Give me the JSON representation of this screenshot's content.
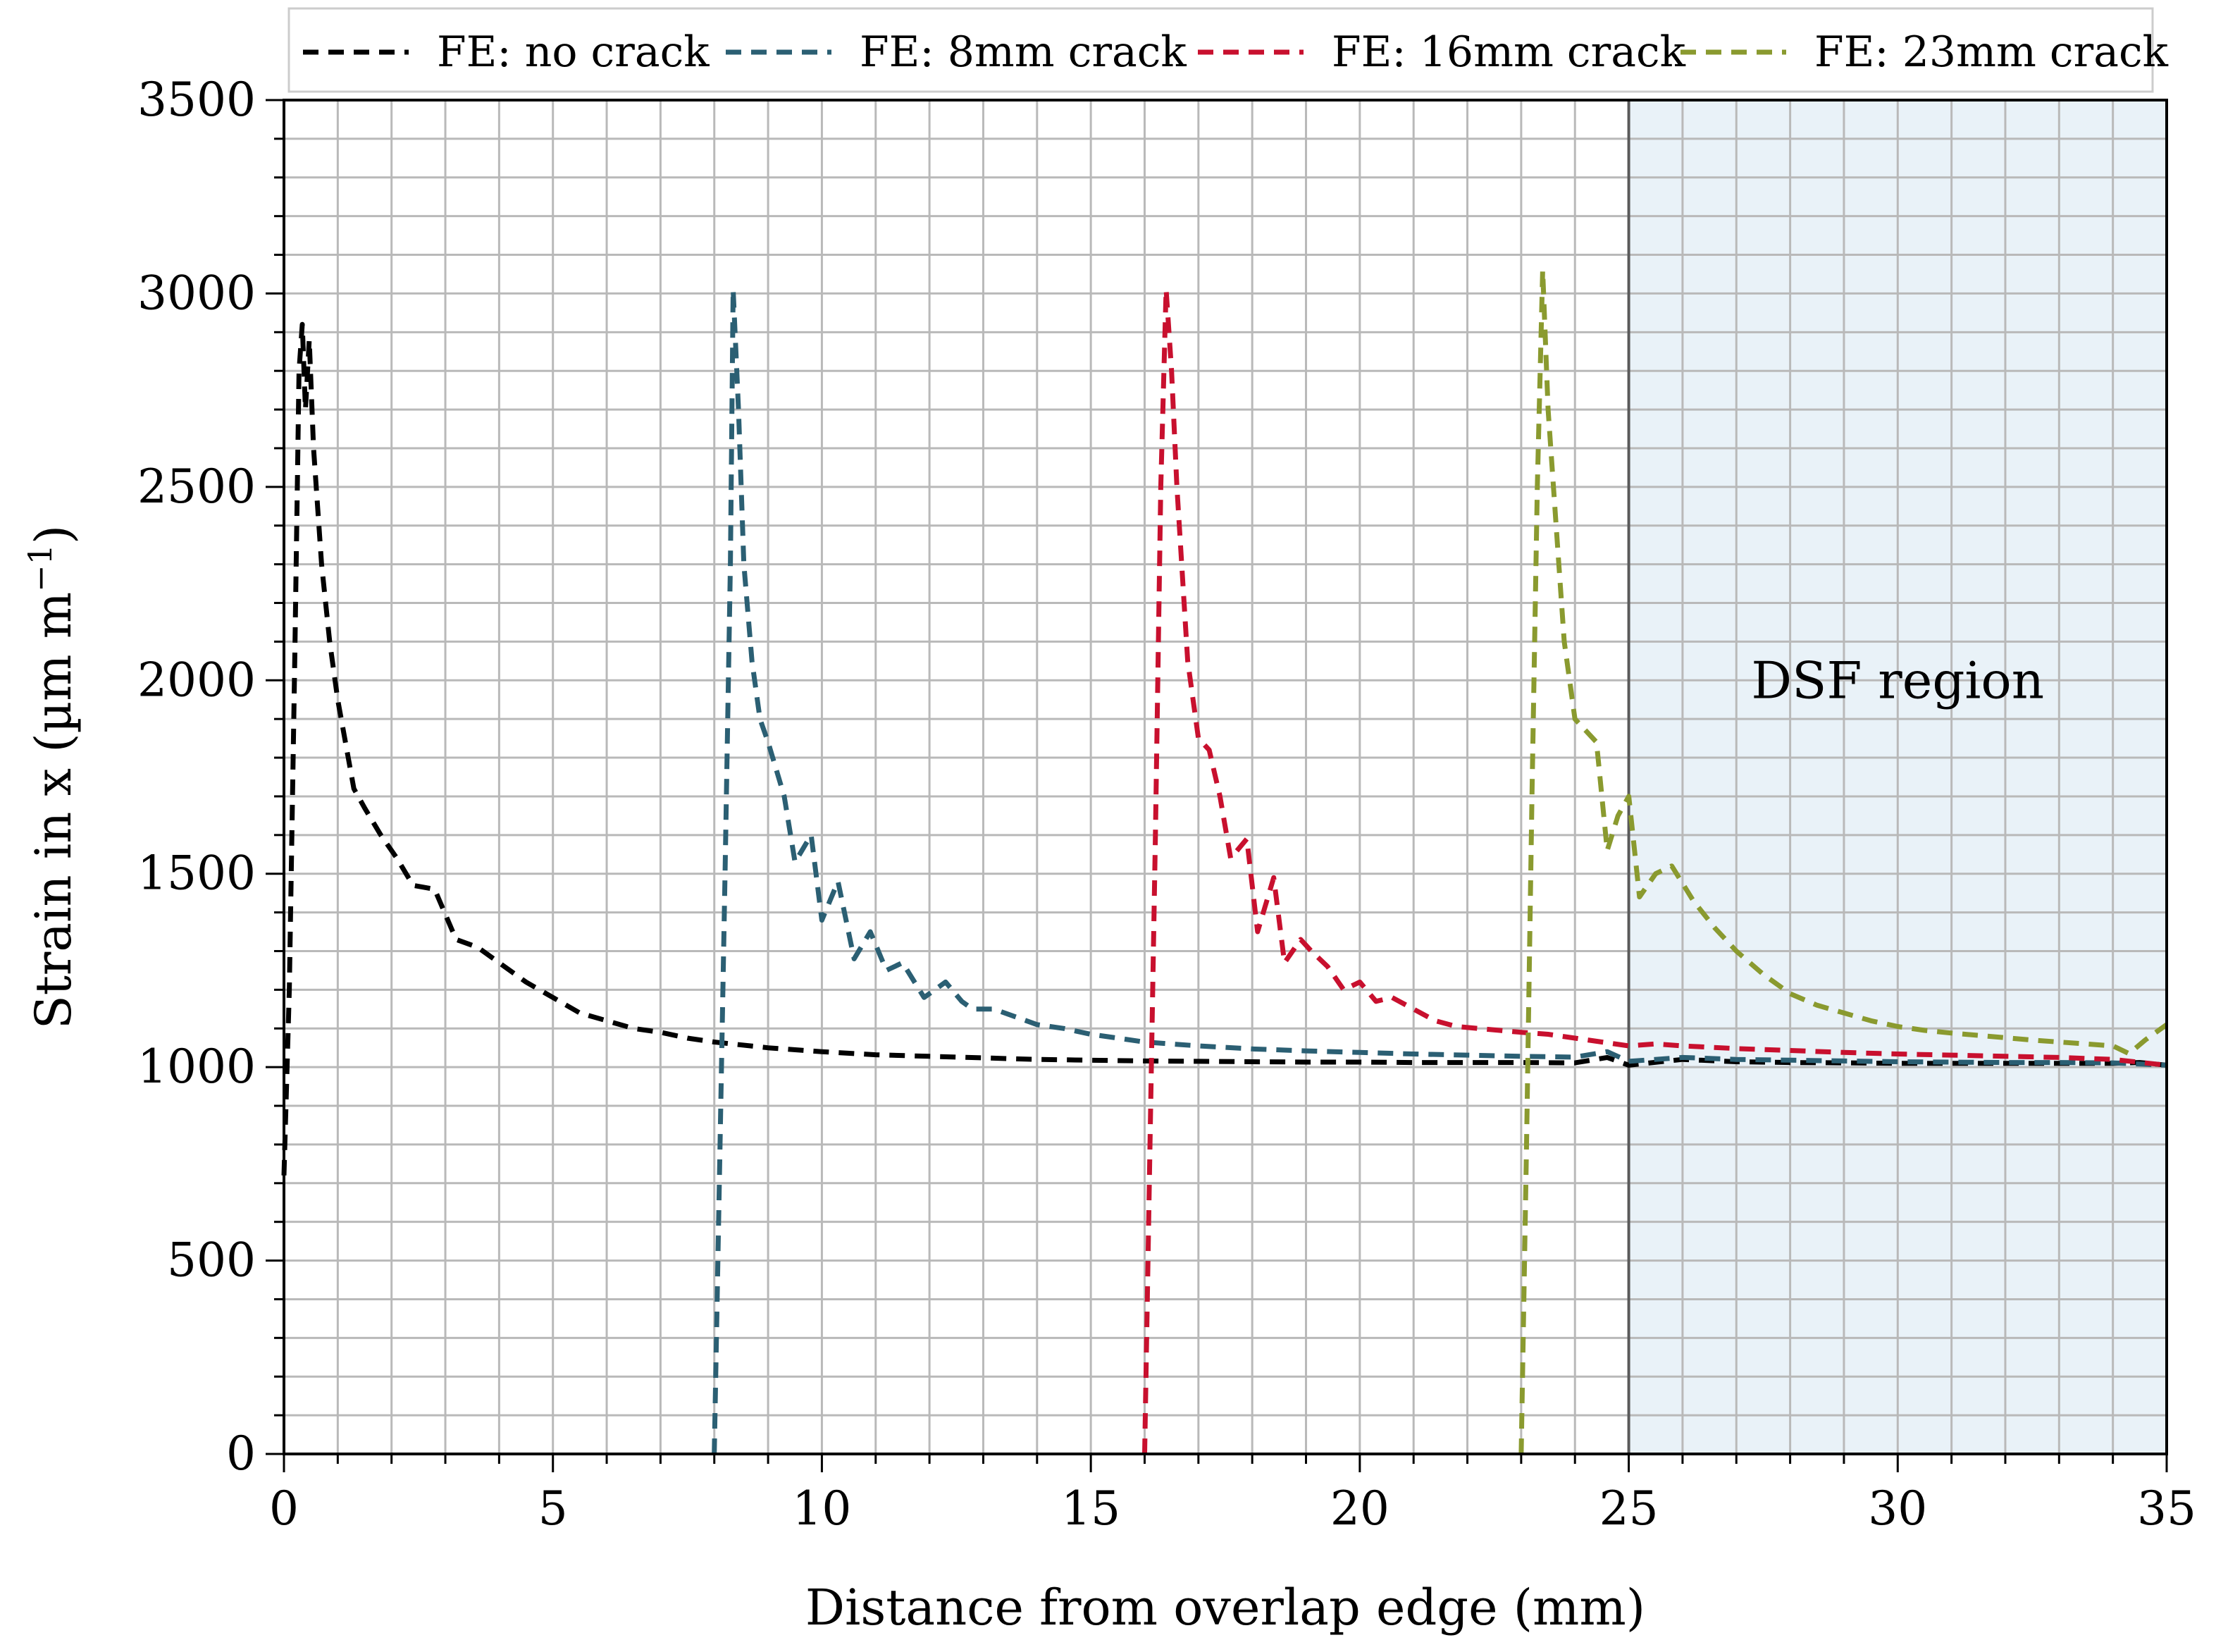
{
  "chart_data": {
    "type": "line",
    "title": "",
    "xlabel": "Distance from overlap edge (mm)",
    "ylabel": "Strain in x (µm m",
    "ylabel_sup": "−1",
    "ylabel_close": ")",
    "xlim": [
      0,
      35
    ],
    "ylim": [
      0,
      3500
    ],
    "x_ticks": [
      "0",
      "5",
      "10",
      "15",
      "20",
      "25",
      "30",
      "35"
    ],
    "y_ticks": [
      "0",
      "500",
      "1000",
      "1500",
      "2000",
      "2500",
      "3000",
      "3500"
    ],
    "grid": true,
    "legend_position": "top",
    "line_style": "dashed",
    "shaded_region": {
      "x_range": [
        25,
        35
      ],
      "label": "DSF region",
      "color": "#e9f2f8"
    },
    "series": [
      {
        "name": "FE: no crack",
        "color": "#000000",
        "x": [
          0.0,
          0.1,
          0.2,
          0.28,
          0.34,
          0.4,
          0.47,
          0.55,
          0.7,
          0.85,
          1.0,
          1.3,
          1.5,
          1.8,
          2.1,
          2.4,
          2.8,
          3.2,
          3.6,
          4.0,
          4.5,
          5.0,
          5.5,
          6.0,
          6.5,
          7.0,
          7.5,
          8.0,
          9.0,
          10.0,
          11.0,
          12.0,
          13.0,
          14.0,
          15.0,
          16.0,
          17.0,
          18.0,
          19.0,
          20.0,
          21.0,
          22.0,
          23.0,
          24.0,
          24.6,
          25.0,
          26.0,
          27.0,
          28.0,
          29.0,
          30.0,
          31.0,
          32.0,
          33.0,
          34.0,
          34.5,
          35.0
        ],
        "y": [
          720,
          1200,
          2050,
          2800,
          2920,
          2700,
          2880,
          2600,
          2300,
          2100,
          1950,
          1720,
          1670,
          1600,
          1540,
          1470,
          1460,
          1330,
          1310,
          1270,
          1220,
          1180,
          1140,
          1120,
          1100,
          1090,
          1075,
          1065,
          1050,
          1040,
          1032,
          1028,
          1024,
          1020,
          1018,
          1016,
          1015,
          1014,
          1013,
          1013,
          1012,
          1012,
          1012,
          1011,
          1025,
          1005,
          1020,
          1014,
          1012,
          1011,
          1010,
          1010,
          1010,
          1010,
          1010,
          1012,
          1005
        ]
      },
      {
        "name": "FE: 8mm crack",
        "color": "#2b5f73",
        "x": [
          8.0,
          8.1,
          8.2,
          8.3,
          8.35,
          8.45,
          8.55,
          8.7,
          8.85,
          9.0,
          9.3,
          9.5,
          9.8,
          10.0,
          10.3,
          10.6,
          10.9,
          11.2,
          11.5,
          11.9,
          12.3,
          12.6,
          12.8,
          13.2,
          13.6,
          14.0,
          14.5,
          15.0,
          15.5,
          16.0,
          17.0,
          18.0,
          19.0,
          20.0,
          21.0,
          22.0,
          23.0,
          24.0,
          24.6,
          25.0,
          26.0,
          27.0,
          28.0,
          29.0,
          30.0,
          31.0,
          32.0,
          33.0,
          34.0,
          35.0
        ],
        "y": [
          0,
          750,
          1500,
          2300,
          3010,
          2700,
          2300,
          2050,
          1900,
          1840,
          1700,
          1530,
          1600,
          1380,
          1480,
          1280,
          1350,
          1250,
          1270,
          1180,
          1220,
          1170,
          1150,
          1150,
          1130,
          1110,
          1100,
          1085,
          1075,
          1065,
          1055,
          1047,
          1042,
          1038,
          1034,
          1031,
          1028,
          1026,
          1040,
          1015,
          1025,
          1020,
          1018,
          1016,
          1014,
          1013,
          1012,
          1012,
          1011,
          1005
        ]
      },
      {
        "name": "FE: 16mm crack",
        "color": "#c8102e",
        "x": [
          16.0,
          16.1,
          16.2,
          16.3,
          16.4,
          16.5,
          16.6,
          16.8,
          17.0,
          17.2,
          17.4,
          17.6,
          17.9,
          18.1,
          18.4,
          18.6,
          18.9,
          19.1,
          19.4,
          19.7,
          20.0,
          20.3,
          20.6,
          21.0,
          21.4,
          21.8,
          22.2,
          22.6,
          23.0,
          23.5,
          24.0,
          24.5,
          25.0,
          25.5,
          26.0,
          27.0,
          28.0,
          29.0,
          30.0,
          31.0,
          32.0,
          33.0,
          34.0,
          35.0
        ],
        "y": [
          0,
          800,
          1600,
          2500,
          3010,
          2800,
          2500,
          2050,
          1850,
          1820,
          1700,
          1540,
          1590,
          1350,
          1490,
          1270,
          1330,
          1300,
          1260,
          1200,
          1220,
          1170,
          1180,
          1150,
          1120,
          1105,
          1100,
          1095,
          1090,
          1085,
          1075,
          1065,
          1055,
          1060,
          1055,
          1048,
          1043,
          1038,
          1034,
          1031,
          1028,
          1025,
          1020,
          1005
        ]
      },
      {
        "name": "FE: 23mm crack",
        "color": "#8a9a2f",
        "x": [
          23.0,
          23.1,
          23.2,
          23.3,
          23.4,
          23.5,
          23.65,
          23.8,
          24.0,
          24.2,
          24.4,
          24.6,
          24.8,
          25.0,
          25.2,
          25.5,
          25.8,
          26.2,
          26.6,
          27.0,
          27.5,
          28.0,
          28.5,
          29.0,
          29.5,
          30.0,
          30.5,
          31.0,
          31.5,
          32.0,
          32.5,
          33.0,
          33.5,
          34.0,
          34.3,
          34.6,
          35.0
        ],
        "y": [
          0,
          800,
          1700,
          2500,
          3060,
          2700,
          2400,
          2100,
          1900,
          1870,
          1840,
          1560,
          1650,
          1700,
          1440,
          1500,
          1520,
          1430,
          1360,
          1300,
          1240,
          1190,
          1160,
          1140,
          1120,
          1105,
          1095,
          1088,
          1082,
          1076,
          1070,
          1065,
          1060,
          1055,
          1035,
          1070,
          1110
        ]
      }
    ]
  }
}
